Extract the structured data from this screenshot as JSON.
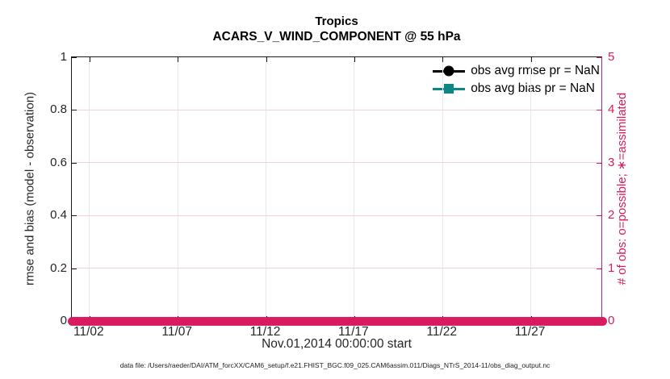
{
  "title": {
    "line1": "Tropics",
    "line2": "ACARS_V_WIND_COMPONENT @ 55 hPa"
  },
  "x_axis": {
    "label": "Nov.01,2014 00:00:00 start",
    "range_days": [
      0,
      30
    ],
    "ticks": [
      {
        "d": 1,
        "t": "11/02"
      },
      {
        "d": 6,
        "t": "11/07"
      },
      {
        "d": 11,
        "t": "11/12"
      },
      {
        "d": 16,
        "t": "11/17"
      },
      {
        "d": 21,
        "t": "11/22"
      },
      {
        "d": 26,
        "t": "11/27"
      }
    ]
  },
  "y_left": {
    "label": "rmse and bias (model - observation)",
    "range": [
      0,
      1
    ],
    "ticks": [
      {
        "v": 0,
        "t": "0"
      },
      {
        "v": 0.2,
        "t": "0.2"
      },
      {
        "v": 0.4,
        "t": "0.4"
      },
      {
        "v": 0.6,
        "t": "0.6"
      },
      {
        "v": 0.8,
        "t": "0.8"
      },
      {
        "v": 1,
        "t": "1"
      }
    ]
  },
  "y_right": {
    "label": "# of obs: o=possible; ∗=assimilated",
    "range": [
      0,
      5
    ],
    "ticks": [
      {
        "v": 0,
        "t": "0"
      },
      {
        "v": 1,
        "t": "1"
      },
      {
        "v": 2,
        "t": "2"
      },
      {
        "v": 3,
        "t": "3"
      },
      {
        "v": 4,
        "t": "4"
      },
      {
        "v": 5,
        "t": "5"
      }
    ]
  },
  "legend": [
    {
      "label": "obs avg rmse pr = NaN",
      "marker": "circle",
      "color": "#000000"
    },
    {
      "label": "obs avg bias pr = NaN",
      "marker": "square",
      "color": "#0E8686"
    }
  ],
  "caption": "data file: /Users/raeder/DAI/ATM_forcXX/CAM6_setup/f.e21.FHIST_BGC.f09_025.CAM6assim.011/Diags_NTrS_2014-11/obs_diag_output.nc",
  "colors": {
    "crimson": "#D81A5F",
    "teal": "#0E8686",
    "grid_vertical": "#E8E8E8",
    "grid_horizontal": "#F5CEDF",
    "spine": "#1A1A1A",
    "text": "#262626"
  },
  "chart_data": {
    "type": "line",
    "title": "Tropics",
    "subtitle": "ACARS_V_WIND_COMPONENT @ 55 hPa",
    "xlabel": "Nov.01,2014 00:00:00 start",
    "x_axis": {
      "start": "2014-11-01 00:00:00",
      "end": "2014-12-01 00:00:00",
      "tick_labels": [
        "11/02",
        "11/07",
        "11/12",
        "11/17",
        "11/22",
        "11/27"
      ]
    },
    "left_axis": {
      "label": "rmse and bias (model - observation)",
      "range": [
        0,
        1
      ],
      "ticks": [
        0,
        0.2,
        0.4,
        0.6,
        0.8,
        1
      ]
    },
    "right_axis": {
      "label": "# of obs: o=possible; ∗=assimilated",
      "range": [
        0,
        5
      ],
      "ticks": [
        0,
        1,
        2,
        3,
        4,
        5
      ]
    },
    "grid": true,
    "legend_position": "top-right, no box",
    "series": [
      {
        "name": "obs avg rmse pr",
        "axis": "left",
        "marker": "filled-circle",
        "color": "#000000",
        "values": "NaN — no curve plotted"
      },
      {
        "name": "obs avg bias pr",
        "axis": "left",
        "marker": "filled-square",
        "color": "#0E8686",
        "values": "NaN — no curve plotted"
      },
      {
        "name": "# of obs (o=possible, ∗=assimilated)",
        "axis": "right",
        "marker": "open-circle",
        "color": "#D81A5F",
        "values": "constant 0 at every observation time from Nov 1 to Dec 1, 2014 (dense marker band along y=0)"
      }
    ]
  }
}
